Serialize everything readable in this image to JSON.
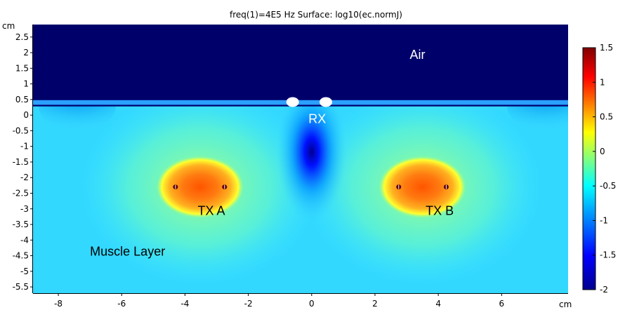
{
  "chart_data": {
    "type": "heatmap",
    "title": "freq(1)=4E5 Hz   Surface: log10(ec.normJ)",
    "x_unit": "cm",
    "y_unit": "cm",
    "xlim": [
      -8.8,
      8.1
    ],
    "ylim": [
      -5.7,
      2.9
    ],
    "x_ticks": [
      -8,
      -6,
      -4,
      -2,
      0,
      2,
      4,
      6
    ],
    "y_ticks": [
      2.5,
      2,
      1.5,
      1,
      0.5,
      0,
      -0.5,
      -1,
      -1.5,
      -2,
      -2.5,
      -3,
      -3.5,
      -4,
      -4.5,
      -5,
      -5.5
    ],
    "colorbar": {
      "min": -2,
      "max": 1.5,
      "ticks": [
        1.5,
        1,
        0.5,
        0,
        -0.5,
        -1,
        -1.5,
        -2
      ],
      "colormap": [
        "#00008f",
        "#0000ff",
        "#00ffff",
        "#ffff00",
        "#ff0000",
        "#800000"
      ]
    },
    "regions": [
      {
        "label": "Air",
        "x": 3.1,
        "y": 1.8,
        "color": "#ffffff"
      },
      {
        "label": "RX",
        "x": -0.1,
        "y": -0.25,
        "color": "#ffffff"
      },
      {
        "label": "TX A",
        "x": -3.6,
        "y": -3.2,
        "color": "#000000"
      },
      {
        "label": "TX B",
        "x": 3.6,
        "y": -3.2,
        "color": "#000000"
      },
      {
        "label": "Muscle Layer",
        "x": -7.0,
        "y": -4.5,
        "color": "#000000"
      }
    ],
    "skin_surface_y": 0.28,
    "rx_electrodes": [
      {
        "x": -0.6,
        "y": 0.42
      },
      {
        "x": 0.45,
        "y": 0.42
      }
    ],
    "tx_electrodes": [
      {
        "x": -4.3,
        "y": -2.3
      },
      {
        "x": -2.75,
        "y": -2.3
      },
      {
        "x": 2.75,
        "y": -2.3
      },
      {
        "x": 4.25,
        "y": -2.3
      }
    ],
    "low_spot": {
      "x": 0.0,
      "y": -1.85
    }
  }
}
